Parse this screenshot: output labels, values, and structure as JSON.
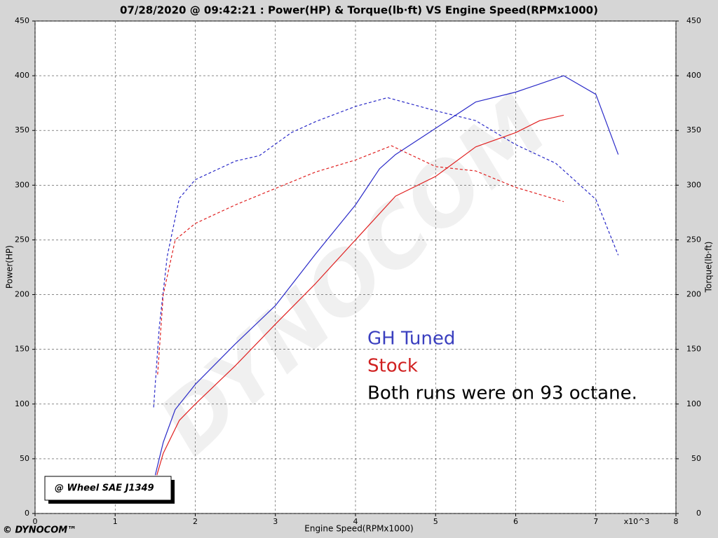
{
  "chart_data": {
    "type": "line",
    "title": "07/28/2020 @ 09:42:21 : Power(HP) & Torque(lb·ft) VS Engine Speed(RPMx1000)",
    "xlabel": "Engine Speed(RPMx1000)",
    "ylabel": "Power(HP)",
    "y2label": "Torque(lb·ft)",
    "x_multiplier": "x10^3",
    "xlim": [
      0,
      8
    ],
    "xticks": [
      0,
      1,
      2,
      3,
      4,
      5,
      6,
      7,
      8
    ],
    "ylim": [
      0,
      450
    ],
    "yticks": [
      0,
      50,
      100,
      150,
      200,
      250,
      300,
      350,
      400,
      450
    ],
    "y2lim": [
      0,
      450
    ],
    "y2ticks": [
      0,
      50,
      100,
      150,
      200,
      250,
      300,
      350,
      400,
      450
    ],
    "grid": true,
    "series": [
      {
        "color": "#2a2ac8",
        "style": "solid",
        "axis": "y",
        "x": [
          1.5,
          1.6,
          1.75,
          2.0,
          2.5,
          3.0,
          3.5,
          4.0,
          4.3,
          4.5,
          5.0,
          5.5,
          6.0,
          6.6,
          7.0,
          7.28
        ],
        "values": [
          35,
          65,
          95,
          118,
          155,
          190,
          237,
          282,
          315,
          328,
          352,
          376,
          385,
          400,
          383,
          328
        ]
      },
      {
        "color": "#2a2ac8",
        "style": "dashed",
        "axis": "y2",
        "x": [
          1.48,
          1.55,
          1.65,
          1.8,
          2.0,
          2.5,
          2.8,
          3.2,
          3.5,
          4.0,
          4.4,
          5.0,
          5.5,
          6.0,
          6.5,
          7.0,
          7.28
        ],
        "values": [
          97,
          170,
          235,
          288,
          305,
          322,
          327,
          348,
          358,
          372,
          380,
          368,
          359,
          337,
          320,
          287,
          236
        ]
      },
      {
        "color": "#e02020",
        "style": "solid",
        "axis": "y",
        "x": [
          1.52,
          1.6,
          1.8,
          2.0,
          2.5,
          3.0,
          3.5,
          4.0,
          4.5,
          5.0,
          5.5,
          6.0,
          6.3,
          6.6
        ],
        "values": [
          35,
          55,
          85,
          100,
          135,
          173,
          210,
          250,
          290,
          308,
          335,
          348,
          359,
          364
        ]
      },
      {
        "color": "#e02020",
        "style": "dashed",
        "axis": "y2",
        "x": [
          1.53,
          1.6,
          1.75,
          2.0,
          2.5,
          3.0,
          3.5,
          4.0,
          4.45,
          5.0,
          5.5,
          6.0,
          6.6
        ],
        "values": [
          127,
          200,
          250,
          265,
          282,
          297,
          312,
          323,
          336,
          317,
          313,
          298,
          285
        ]
      }
    ],
    "annotations": [
      {
        "text": "GH Tuned",
        "color": "#3a3fbf"
      },
      {
        "text": "Stock",
        "color": "#d02020"
      },
      {
        "text": "Both runs were on 93 octane.",
        "color": "#000000"
      }
    ],
    "standard_box": "@ Wheel SAE J1349",
    "watermark": "DYNOCOM",
    "logo": "© DYNOCOM™"
  }
}
